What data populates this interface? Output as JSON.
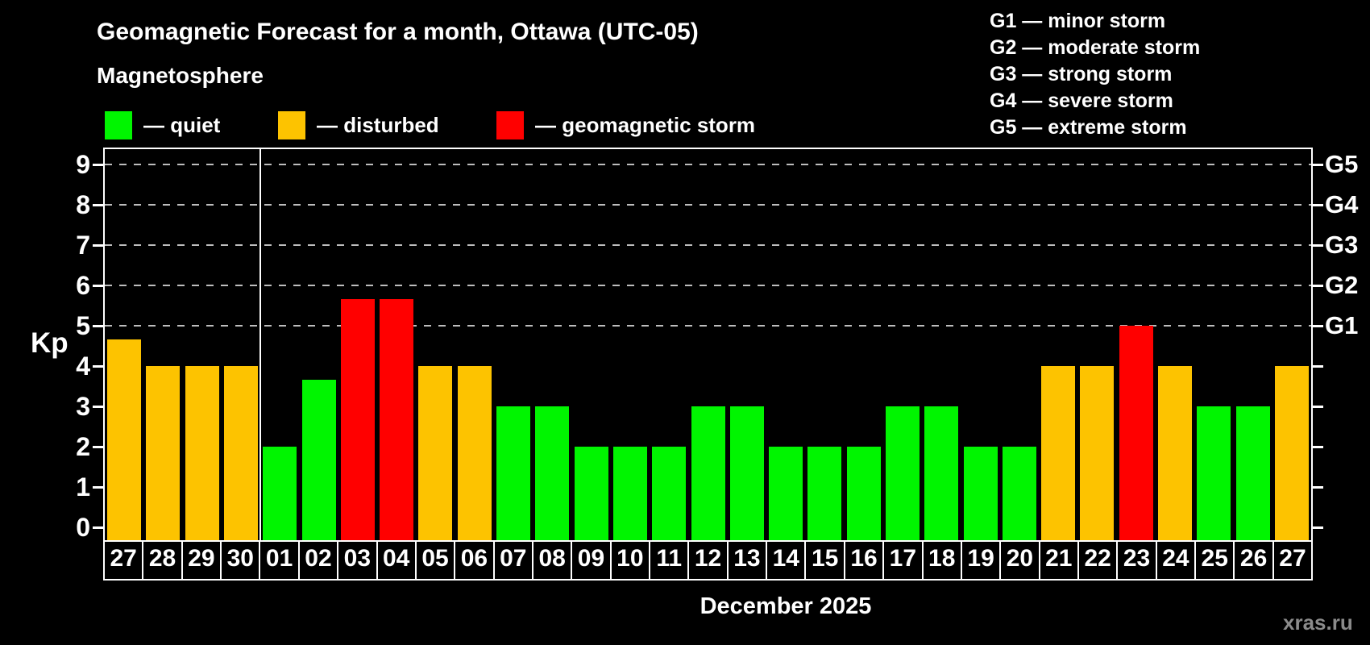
{
  "title": "Geomagnetic Forecast for a month, Ottawa (UTC-05)",
  "subtitle": "Magnetosphere",
  "legend": {
    "items": [
      {
        "key": "quiet",
        "label": "— quiet"
      },
      {
        "key": "disturbed",
        "label": "— disturbed"
      },
      {
        "key": "storm",
        "label": "— geomagnetic storm"
      }
    ]
  },
  "g_legend": [
    "G1 — minor storm",
    "G2 — moderate storm",
    "G3 — strong storm",
    "G4 — severe storm",
    "G5 — extreme storm"
  ],
  "axis": {
    "y_label": "Kp",
    "y_ticks": [
      0,
      1,
      2,
      3,
      4,
      5,
      6,
      7,
      8,
      9
    ],
    "right_labels": [
      {
        "value": 5,
        "label": "G1"
      },
      {
        "value": 6,
        "label": "G2"
      },
      {
        "value": 7,
        "label": "G3"
      },
      {
        "value": 8,
        "label": "G4"
      },
      {
        "value": 9,
        "label": "G5"
      }
    ]
  },
  "x_axis_title": "December 2025",
  "watermark": "xras.ru",
  "chart_data": {
    "type": "bar",
    "title": "Geomagnetic Forecast for a month, Ottawa (UTC-05)",
    "xlabel": "December 2025",
    "ylabel": "Kp",
    "ylim": [
      0,
      9
    ],
    "grid_on": true,
    "grid_values": [
      5,
      6,
      7,
      8,
      9
    ],
    "separator_after_index": 3,
    "colors": {
      "quiet": "#00f500",
      "disturbed": "#fdc300",
      "storm": "#ff0000"
    },
    "categories": [
      "27",
      "28",
      "29",
      "30",
      "01",
      "02",
      "03",
      "04",
      "05",
      "06",
      "07",
      "08",
      "09",
      "10",
      "11",
      "12",
      "13",
      "14",
      "15",
      "16",
      "17",
      "18",
      "19",
      "20",
      "21",
      "22",
      "23",
      "24",
      "25",
      "26",
      "27"
    ],
    "values": [
      4.67,
      4,
      4,
      4,
      2,
      3.67,
      5.67,
      5.67,
      4,
      4,
      3,
      3,
      2,
      2,
      2,
      3,
      3,
      2,
      2,
      2,
      3,
      3,
      2,
      2,
      4,
      4,
      5,
      4,
      3,
      3,
      4
    ],
    "status": [
      "disturbed",
      "disturbed",
      "disturbed",
      "disturbed",
      "quiet",
      "quiet",
      "storm",
      "storm",
      "disturbed",
      "disturbed",
      "quiet",
      "quiet",
      "quiet",
      "quiet",
      "quiet",
      "quiet",
      "quiet",
      "quiet",
      "quiet",
      "quiet",
      "quiet",
      "quiet",
      "quiet",
      "quiet",
      "disturbed",
      "disturbed",
      "storm",
      "disturbed",
      "quiet",
      "quiet",
      "disturbed"
    ]
  }
}
